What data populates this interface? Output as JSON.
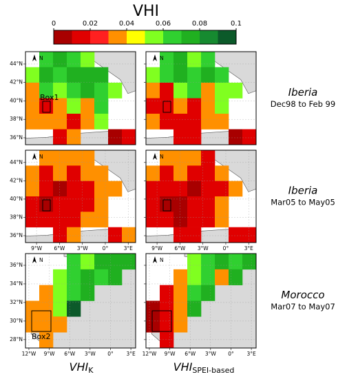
{
  "title": "VHI",
  "colorbar": {
    "lim": [
      0,
      0.1
    ],
    "ticks": [
      0,
      0.02,
      0.04,
      0.06,
      0.08,
      0.1
    ],
    "colors": [
      "#a80000",
      "#e00000",
      "#ff2020",
      "#ff9000",
      "#ffff00",
      "#80ff20",
      "#30d030",
      "#20b020",
      "#168a30",
      "#0c5a2a"
    ]
  },
  "north_label": "N",
  "rows": [
    {
      "region": "Iberia",
      "period": "Dec98 to Feb 99",
      "box": "Box1",
      "lonlim": [
        -10.45,
        3.97
      ],
      "latlim": [
        35.25,
        45.34
      ],
      "lat_labels": [
        {
          "value": 44,
          "label": "44°N"
        },
        {
          "value": 42,
          "label": "42°N"
        },
        {
          "value": 40,
          "label": "40°N"
        },
        {
          "value": 38,
          "label": "38°N"
        },
        {
          "value": 36,
          "label": "36°N"
        }
      ],
      "panels": [
        {
          "cells": [
            [
              null,
              0.06,
              0.07,
              0.06,
              0.05,
              null,
              null,
              null
            ],
            [
              0.05,
              0.07,
              0.06,
              0.07,
              0.08,
              0.07,
              null,
              null
            ],
            [
              0.04,
              0.06,
              0.05,
              0.06,
              0.07,
              0.06,
              0.05,
              null
            ],
            [
              0.03,
              0.02,
              0.04,
              0.05,
              0.04,
              0.06,
              null,
              null
            ],
            [
              0.03,
              0.04,
              0.03,
              0.02,
              0.03,
              0.05,
              null,
              null
            ],
            [
              null,
              null,
              0.02,
              0.03,
              null,
              null,
              0.01,
              0.02
            ]
          ]
        },
        {
          "cells": [
            [
              null,
              0.06,
              0.07,
              0.05,
              0.06,
              null,
              null,
              null
            ],
            [
              0.05,
              0.06,
              0.07,
              0.06,
              0.07,
              0.06,
              null,
              null
            ],
            [
              0.04,
              0.02,
              0.05,
              0.06,
              0.03,
              0.05,
              0.05,
              null
            ],
            [
              0.02,
              0.02,
              0.03,
              0.02,
              0.04,
              0.05,
              null,
              null
            ],
            [
              0.03,
              0.02,
              0.02,
              0.02,
              0.03,
              0.04,
              null,
              null
            ],
            [
              null,
              null,
              0.02,
              0.02,
              null,
              null,
              0.01,
              0.02
            ]
          ]
        }
      ]
    },
    {
      "region": "Iberia",
      "period": "Mar05 to May05",
      "lonlim": [
        -10.45,
        3.97
      ],
      "latlim": [
        35.25,
        45.34
      ],
      "lat_labels": [
        {
          "value": 44,
          "label": "44°N"
        },
        {
          "value": 42,
          "label": "42°N"
        },
        {
          "value": 40,
          "label": "40°N"
        },
        {
          "value": 38,
          "label": "38°N"
        },
        {
          "value": 36,
          "label": "36°N"
        }
      ],
      "lon_labels": [
        {
          "value": -9,
          "label": "9°W"
        },
        {
          "value": -6,
          "label": "6°W"
        },
        {
          "value": -3,
          "label": "3°W"
        },
        {
          "value": 0,
          "label": "0°"
        },
        {
          "value": 3,
          "label": "3°E"
        }
      ],
      "panels": [
        {
          "cells": [
            [
              null,
              0.04,
              0.03,
              0.04,
              0.03,
              null,
              null,
              null
            ],
            [
              0.04,
              0.02,
              0.03,
              0.02,
              0.03,
              0.04,
              null,
              null
            ],
            [
              0.03,
              0.02,
              0.01,
              0.02,
              0.02,
              0.03,
              0.03,
              null
            ],
            [
              0.02,
              0.01,
              0.02,
              0.02,
              0.02,
              0.04,
              null,
              null
            ],
            [
              0.02,
              0.02,
              0.02,
              0.02,
              0.03,
              0.03,
              null,
              null
            ],
            [
              null,
              null,
              0.02,
              0.03,
              null,
              null,
              0.02,
              0.03
            ]
          ]
        },
        {
          "cells": [
            [
              null,
              0.03,
              0.04,
              0.03,
              0.02,
              null,
              null,
              null
            ],
            [
              0.03,
              0.02,
              0.03,
              0.02,
              0.02,
              0.03,
              null,
              null
            ],
            [
              0.02,
              0.02,
              0.02,
              0.01,
              0.02,
              0.02,
              0.03,
              null
            ],
            [
              0.02,
              0.01,
              0.01,
              0.02,
              0.02,
              0.03,
              null,
              null
            ],
            [
              0.02,
              0.02,
              0.01,
              0.02,
              0.02,
              0.03,
              null,
              null
            ],
            [
              null,
              null,
              0.02,
              0.02,
              null,
              null,
              0.02,
              0.02
            ]
          ]
        }
      ]
    },
    {
      "region": "Morocco",
      "period": "Mar07 to May07",
      "box": "Box2",
      "lonlim": [
        -12.5,
        3.7
      ],
      "latlim": [
        27.1,
        37.26
      ],
      "lat_labels": [
        {
          "value": 36,
          "label": "36°N"
        },
        {
          "value": 34,
          "label": "34°N"
        },
        {
          "value": 32,
          "label": "32°N"
        },
        {
          "value": 30,
          "label": "30°N"
        },
        {
          "value": 28,
          "label": "28°N"
        }
      ],
      "lon_labels": [
        {
          "value": -12,
          "label": "12°W"
        },
        {
          "value": -9,
          "label": "9°W"
        },
        {
          "value": -6,
          "label": "6°W"
        },
        {
          "value": -3,
          "label": "3°W"
        },
        {
          "value": 0,
          "label": "0°"
        },
        {
          "value": 3,
          "label": "3°E"
        }
      ],
      "panels": [
        {
          "cells": [
            [
              null,
              null,
              null,
              0.06,
              0.05,
              0.07,
              0.08,
              0.07
            ],
            [
              null,
              null,
              0.05,
              0.06,
              0.07,
              0.06,
              0.07,
              null
            ],
            [
              null,
              0.04,
              0.05,
              0.06,
              0.08,
              null,
              null,
              null
            ],
            [
              0.04,
              0.03,
              0.05,
              0.09,
              null,
              null,
              null,
              null
            ],
            [
              0.03,
              0.04,
              0.04,
              null,
              null,
              null,
              null,
              null
            ],
            [
              null,
              0.03,
              null,
              null,
              null,
              null,
              null,
              null
            ]
          ]
        },
        {
          "cells": [
            [
              null,
              null,
              null,
              0.05,
              0.06,
              0.07,
              0.06,
              0.08
            ],
            [
              null,
              null,
              0.04,
              0.05,
              0.06,
              0.03,
              0.07,
              null
            ],
            [
              null,
              0.02,
              0.04,
              0.06,
              0.07,
              null,
              null,
              null
            ],
            [
              0.01,
              0.02,
              0.03,
              0.08,
              null,
              null,
              null,
              null
            ],
            [
              0.01,
              0.02,
              0.03,
              null,
              null,
              null,
              null,
              null
            ],
            [
              null,
              0.02,
              null,
              null,
              null,
              null,
              null,
              null
            ]
          ]
        }
      ]
    }
  ],
  "columns": [
    {
      "label": "VHI",
      "subscript": "K"
    },
    {
      "label": "VHI",
      "subscript": "SPEI-based"
    }
  ]
}
